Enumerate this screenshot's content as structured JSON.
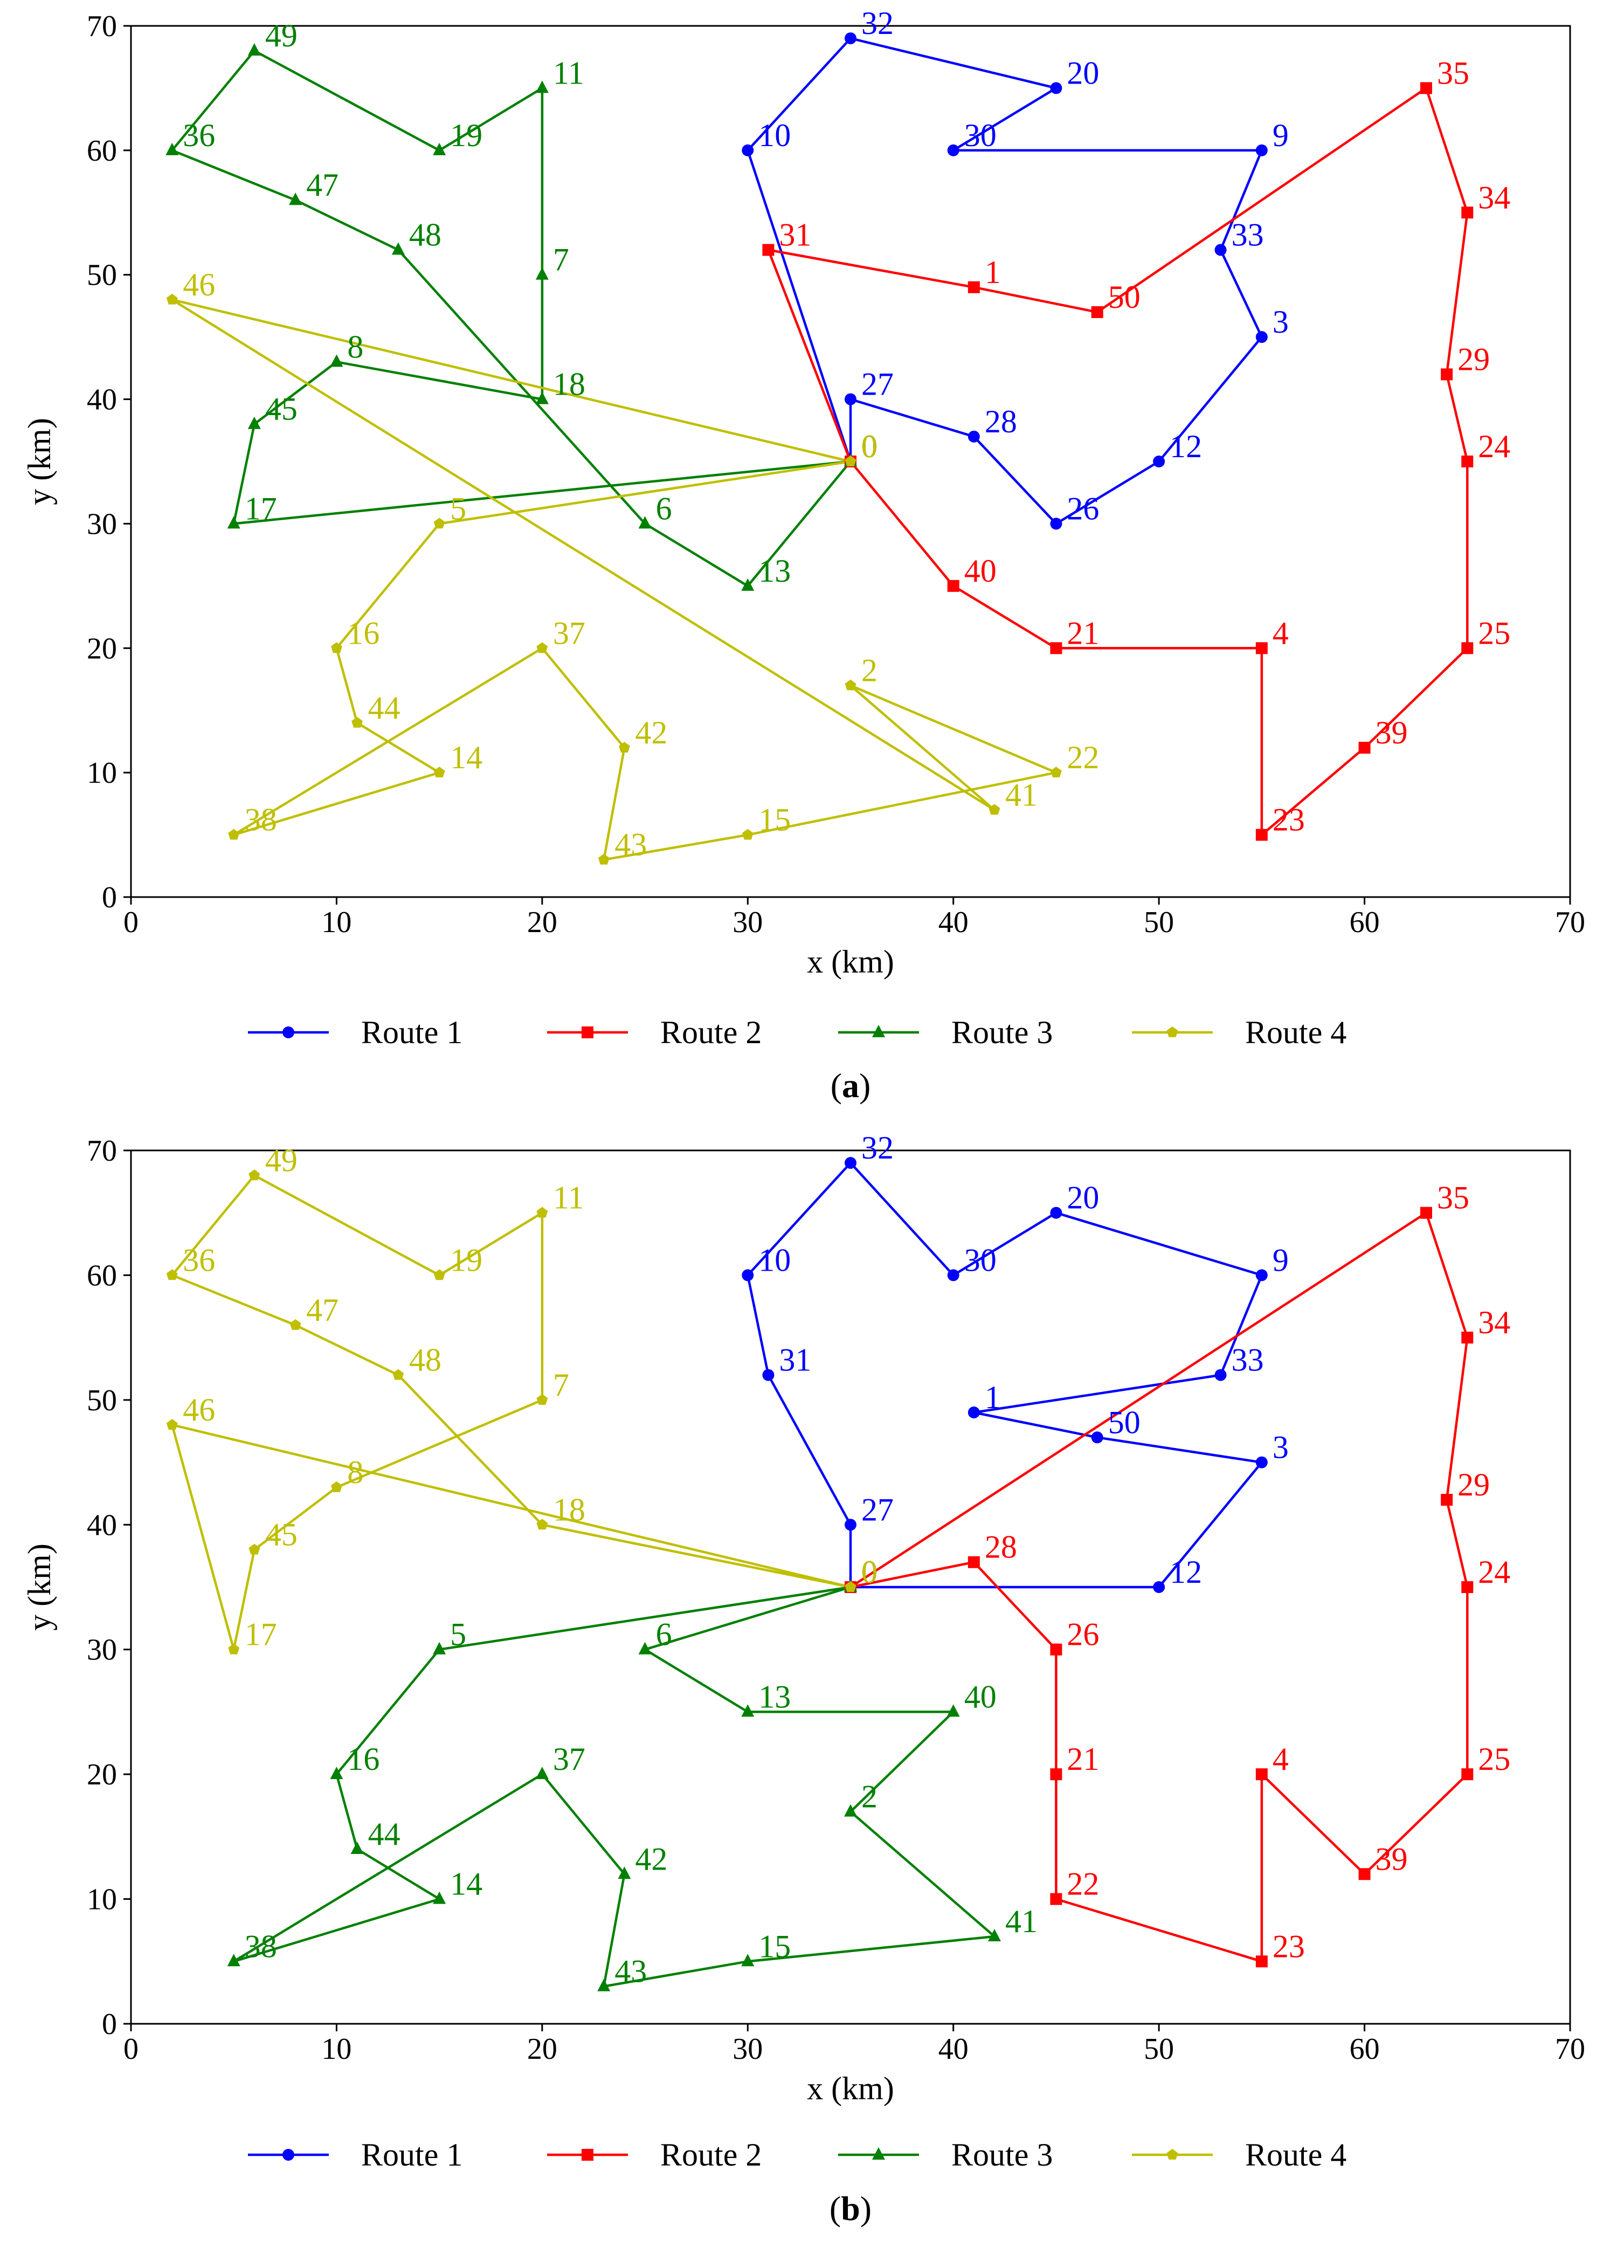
{
  "chart_data": [
    {
      "panel_label": "a",
      "type": "line",
      "xlabel": "x (km)",
      "ylabel": "y (km)",
      "xlim": [
        0,
        70
      ],
      "ylim": [
        0,
        70
      ],
      "xticks": [
        0,
        10,
        20,
        30,
        40,
        50,
        60,
        70
      ],
      "yticks": [
        0,
        10,
        20,
        30,
        40,
        50,
        60,
        70
      ],
      "grid": false,
      "legend_position": "bottom",
      "series": [
        {
          "name": "Route 1",
          "color": "#0000ff",
          "marker": "circle",
          "points": [
            [
              35,
              35,
              "0"
            ],
            [
              35,
              40,
              "27"
            ],
            [
              41,
              37,
              "28"
            ],
            [
              45,
              30,
              "26"
            ],
            [
              50,
              35,
              "12"
            ],
            [
              55,
              45,
              "3"
            ],
            [
              53,
              52,
              "33"
            ],
            [
              55,
              60,
              "9"
            ],
            [
              40,
              60,
              "30"
            ],
            [
              45,
              65,
              "20"
            ],
            [
              35,
              69,
              "32"
            ],
            [
              30,
              60,
              "10"
            ],
            [
              35,
              35,
              "0"
            ]
          ]
        },
        {
          "name": "Route 2",
          "color": "#ff0000",
          "marker": "square",
          "points": [
            [
              35,
              35,
              "0"
            ],
            [
              31,
              52,
              "31"
            ],
            [
              41,
              49,
              "1"
            ],
            [
              47,
              47,
              "50"
            ],
            [
              63,
              65,
              "35"
            ],
            [
              65,
              55,
              "34"
            ],
            [
              64,
              42,
              "29"
            ],
            [
              65,
              35,
              "24"
            ],
            [
              65,
              20,
              "25"
            ],
            [
              60,
              12,
              "39"
            ],
            [
              55,
              5,
              "23"
            ],
            [
              55,
              20,
              "4"
            ],
            [
              45,
              20,
              "21"
            ],
            [
              40,
              25,
              "40"
            ],
            [
              35,
              35,
              "0"
            ]
          ]
        },
        {
          "name": "Route 3",
          "color": "#008000",
          "marker": "triangle",
          "points": [
            [
              35,
              35,
              "0"
            ],
            [
              5,
              30,
              "17"
            ],
            [
              6,
              38,
              "45"
            ],
            [
              10,
              43,
              "8"
            ],
            [
              20,
              40,
              "18"
            ],
            [
              20,
              50,
              "7"
            ],
            [
              20,
              65,
              "11"
            ],
            [
              15,
              60,
              "19"
            ],
            [
              6,
              68,
              "49"
            ],
            [
              2,
              60,
              "36"
            ],
            [
              8,
              56,
              "47"
            ],
            [
              13,
              52,
              "48"
            ],
            [
              25,
              30,
              "6"
            ],
            [
              30,
              25,
              "13"
            ],
            [
              35,
              35,
              "0"
            ]
          ]
        },
        {
          "name": "Route 4",
          "color": "#bfbf00",
          "marker": "pentagon",
          "points": [
            [
              35,
              35,
              "0"
            ],
            [
              2,
              48,
              "46"
            ],
            [
              42,
              7,
              "41"
            ],
            [
              35,
              17,
              "2"
            ],
            [
              45,
              10,
              "22"
            ],
            [
              30,
              5,
              "15"
            ],
            [
              23,
              3,
              "43"
            ],
            [
              24,
              12,
              "42"
            ],
            [
              20,
              20,
              "37"
            ],
            [
              5,
              5,
              "38"
            ],
            [
              15,
              10,
              "14"
            ],
            [
              11,
              14,
              "44"
            ],
            [
              10,
              20,
              "16"
            ],
            [
              15,
              30,
              "5"
            ],
            [
              35,
              35,
              "0"
            ]
          ]
        }
      ]
    },
    {
      "panel_label": "b",
      "type": "line",
      "xlabel": "x (km)",
      "ylabel": "y (km)",
      "xlim": [
        0,
        70
      ],
      "ylim": [
        0,
        70
      ],
      "xticks": [
        0,
        10,
        20,
        30,
        40,
        50,
        60,
        70
      ],
      "yticks": [
        0,
        10,
        20,
        30,
        40,
        50,
        60,
        70
      ],
      "grid": false,
      "legend_position": "bottom",
      "series": [
        {
          "name": "Route 1",
          "color": "#0000ff",
          "marker": "circle",
          "points": [
            [
              35,
              35,
              "0"
            ],
            [
              50,
              35,
              "12"
            ],
            [
              55,
              45,
              "3"
            ],
            [
              47,
              47,
              "50"
            ],
            [
              41,
              49,
              "1"
            ],
            [
              53,
              52,
              "33"
            ],
            [
              55,
              60,
              "9"
            ],
            [
              45,
              65,
              "20"
            ],
            [
              40,
              60,
              "30"
            ],
            [
              35,
              69,
              "32"
            ],
            [
              30,
              60,
              "10"
            ],
            [
              31,
              52,
              "31"
            ],
            [
              35,
              40,
              "27"
            ],
            [
              35,
              35,
              "0"
            ]
          ]
        },
        {
          "name": "Route 2",
          "color": "#ff0000",
          "marker": "square",
          "points": [
            [
              35,
              35,
              "0"
            ],
            [
              63,
              65,
              "35"
            ],
            [
              65,
              55,
              "34"
            ],
            [
              64,
              42,
              "29"
            ],
            [
              65,
              35,
              "24"
            ],
            [
              65,
              20,
              "25"
            ],
            [
              60,
              12,
              "39"
            ],
            [
              55,
              20,
              "4"
            ],
            [
              55,
              5,
              "23"
            ],
            [
              45,
              10,
              "22"
            ],
            [
              45,
              20,
              "21"
            ],
            [
              45,
              30,
              "26"
            ],
            [
              41,
              37,
              "28"
            ],
            [
              35,
              35,
              "0"
            ]
          ]
        },
        {
          "name": "Route 3",
          "color": "#008000",
          "marker": "triangle",
          "points": [
            [
              35,
              35,
              "0"
            ],
            [
              15,
              30,
              "5"
            ],
            [
              10,
              20,
              "16"
            ],
            [
              11,
              14,
              "44"
            ],
            [
              15,
              10,
              "14"
            ],
            [
              5,
              5,
              "38"
            ],
            [
              20,
              20,
              "37"
            ],
            [
              24,
              12,
              "42"
            ],
            [
              23,
              3,
              "43"
            ],
            [
              30,
              5,
              "15"
            ],
            [
              42,
              7,
              "41"
            ],
            [
              35,
              17,
              "2"
            ],
            [
              40,
              25,
              "40"
            ],
            [
              30,
              25,
              "13"
            ],
            [
              25,
              30,
              "6"
            ],
            [
              35,
              35,
              "0"
            ]
          ]
        },
        {
          "name": "Route 4",
          "color": "#bfbf00",
          "marker": "pentagon",
          "points": [
            [
              35,
              35,
              "0"
            ],
            [
              2,
              48,
              "46"
            ],
            [
              5,
              30,
              "17"
            ],
            [
              6,
              38,
              "45"
            ],
            [
              10,
              43,
              "8"
            ],
            [
              20,
              50,
              "7"
            ],
            [
              20,
              65,
              "11"
            ],
            [
              15,
              60,
              "19"
            ],
            [
              6,
              68,
              "49"
            ],
            [
              2,
              60,
              "36"
            ],
            [
              8,
              56,
              "47"
            ],
            [
              13,
              52,
              "48"
            ],
            [
              20,
              40,
              "18"
            ],
            [
              35,
              35,
              "0"
            ]
          ]
        }
      ]
    }
  ]
}
